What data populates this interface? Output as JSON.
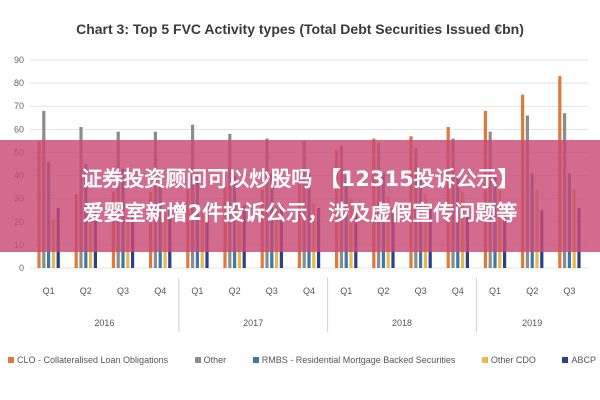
{
  "chart_data": {
    "type": "bar",
    "title": "Chart 3: Top 5 FVC Activity types (Total Debt Securities Issued €bn)",
    "ylim": [
      0,
      90
    ],
    "yticks": [
      0,
      10,
      20,
      30,
      40,
      50,
      60,
      70,
      80,
      90
    ],
    "categories": [
      "Q1",
      "Q2",
      "Q3",
      "Q4",
      "Q1",
      "Q2",
      "Q3",
      "Q4",
      "Q1",
      "Q2",
      "Q3",
      "Q4",
      "Q1",
      "Q2",
      "Q3"
    ],
    "years": [
      {
        "label": "2016",
        "span": 4
      },
      {
        "label": "2017",
        "span": 4
      },
      {
        "label": "2018",
        "span": 4
      },
      {
        "label": "2019",
        "span": 3
      }
    ],
    "series": [
      {
        "name": "CLO - Collateralised Loan Obligations",
        "color": "#e0793a",
        "values": [
          55,
          32,
          33,
          33,
          34,
          35,
          34,
          38,
          51,
          56,
          57,
          61,
          68,
          75,
          83
        ]
      },
      {
        "name": "Other",
        "color": "#8c8c8c",
        "values": [
          68,
          61,
          59,
          59,
          62,
          58,
          56,
          55,
          53,
          54,
          52,
          56,
          59,
          66,
          67
        ]
      },
      {
        "name": "RMBS - Residential Mortgage Backed Securities",
        "color": "#3a78ad",
        "values": [
          46,
          45,
          43,
          42,
          41,
          40,
          41,
          41,
          40,
          41,
          40,
          39,
          40,
          41,
          41
        ]
      },
      {
        "name": "Other CDO",
        "color": "#e8b84a",
        "values": [
          21,
          22,
          23,
          24,
          24,
          26,
          27,
          28,
          30,
          31,
          32,
          33,
          34,
          34,
          34
        ]
      },
      {
        "name": "ABCP",
        "color": "#2c3f8a",
        "values": [
          26,
          25,
          25,
          26,
          27,
          27,
          27,
          26,
          26,
          26,
          26,
          25,
          25,
          25,
          26
        ]
      }
    ],
    "legend_position": "bottom",
    "grid": true
  },
  "overlay": {
    "line1": "证券投资顾问可以炒股吗 【12315投诉公示】",
    "line2": "爱婴室新增2件投诉公示，涉及虚假宣传问题等"
  }
}
